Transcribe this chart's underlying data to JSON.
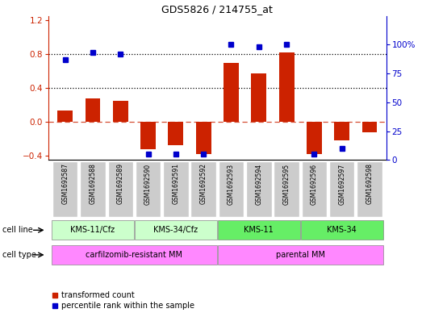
{
  "title": "GDS5826 / 214755_at",
  "samples": [
    "GSM1692587",
    "GSM1692588",
    "GSM1692589",
    "GSM1692590",
    "GSM1692591",
    "GSM1692592",
    "GSM1692593",
    "GSM1692594",
    "GSM1692595",
    "GSM1692596",
    "GSM1692597",
    "GSM1692598"
  ],
  "transformed_count": [
    0.13,
    0.28,
    0.25,
    -0.32,
    -0.27,
    -0.38,
    0.7,
    0.57,
    0.82,
    -0.38,
    -0.22,
    -0.12
  ],
  "percentile_dots": [
    87,
    93,
    92,
    null,
    null,
    null,
    100,
    98,
    100,
    null,
    null,
    null
  ],
  "percentile_low": [
    null,
    null,
    null,
    5,
    5,
    5,
    null,
    null,
    null,
    5,
    10,
    null
  ],
  "cell_line_groups": [
    {
      "label": "KMS-11/Cfz",
      "start": 0,
      "end": 2,
      "color": "#ccffcc"
    },
    {
      "label": "KMS-34/Cfz",
      "start": 3,
      "end": 5,
      "color": "#ccffcc"
    },
    {
      "label": "KMS-11",
      "start": 6,
      "end": 8,
      "color": "#66ee66"
    },
    {
      "label": "KMS-34",
      "start": 9,
      "end": 11,
      "color": "#66ee66"
    }
  ],
  "cell_type_groups": [
    {
      "label": "carfilzomib-resistant MM",
      "start": 0,
      "end": 5,
      "color": "#ff88ff"
    },
    {
      "label": "parental MM",
      "start": 6,
      "end": 11,
      "color": "#ff88ff"
    }
  ],
  "bar_color": "#cc2200",
  "dot_color": "#0000cc",
  "ylim_left": [
    -0.45,
    1.25
  ],
  "ylim_right": [
    0,
    125
  ],
  "yticks_left": [
    -0.4,
    0.0,
    0.4,
    0.8,
    1.2
  ],
  "yticks_right": [
    0,
    25,
    50,
    75,
    100
  ],
  "hline_dotted": [
    0.4,
    0.8
  ],
  "zero_line_y": 0.0,
  "sample_box_color": "#cccccc",
  "title_fontsize": 9
}
